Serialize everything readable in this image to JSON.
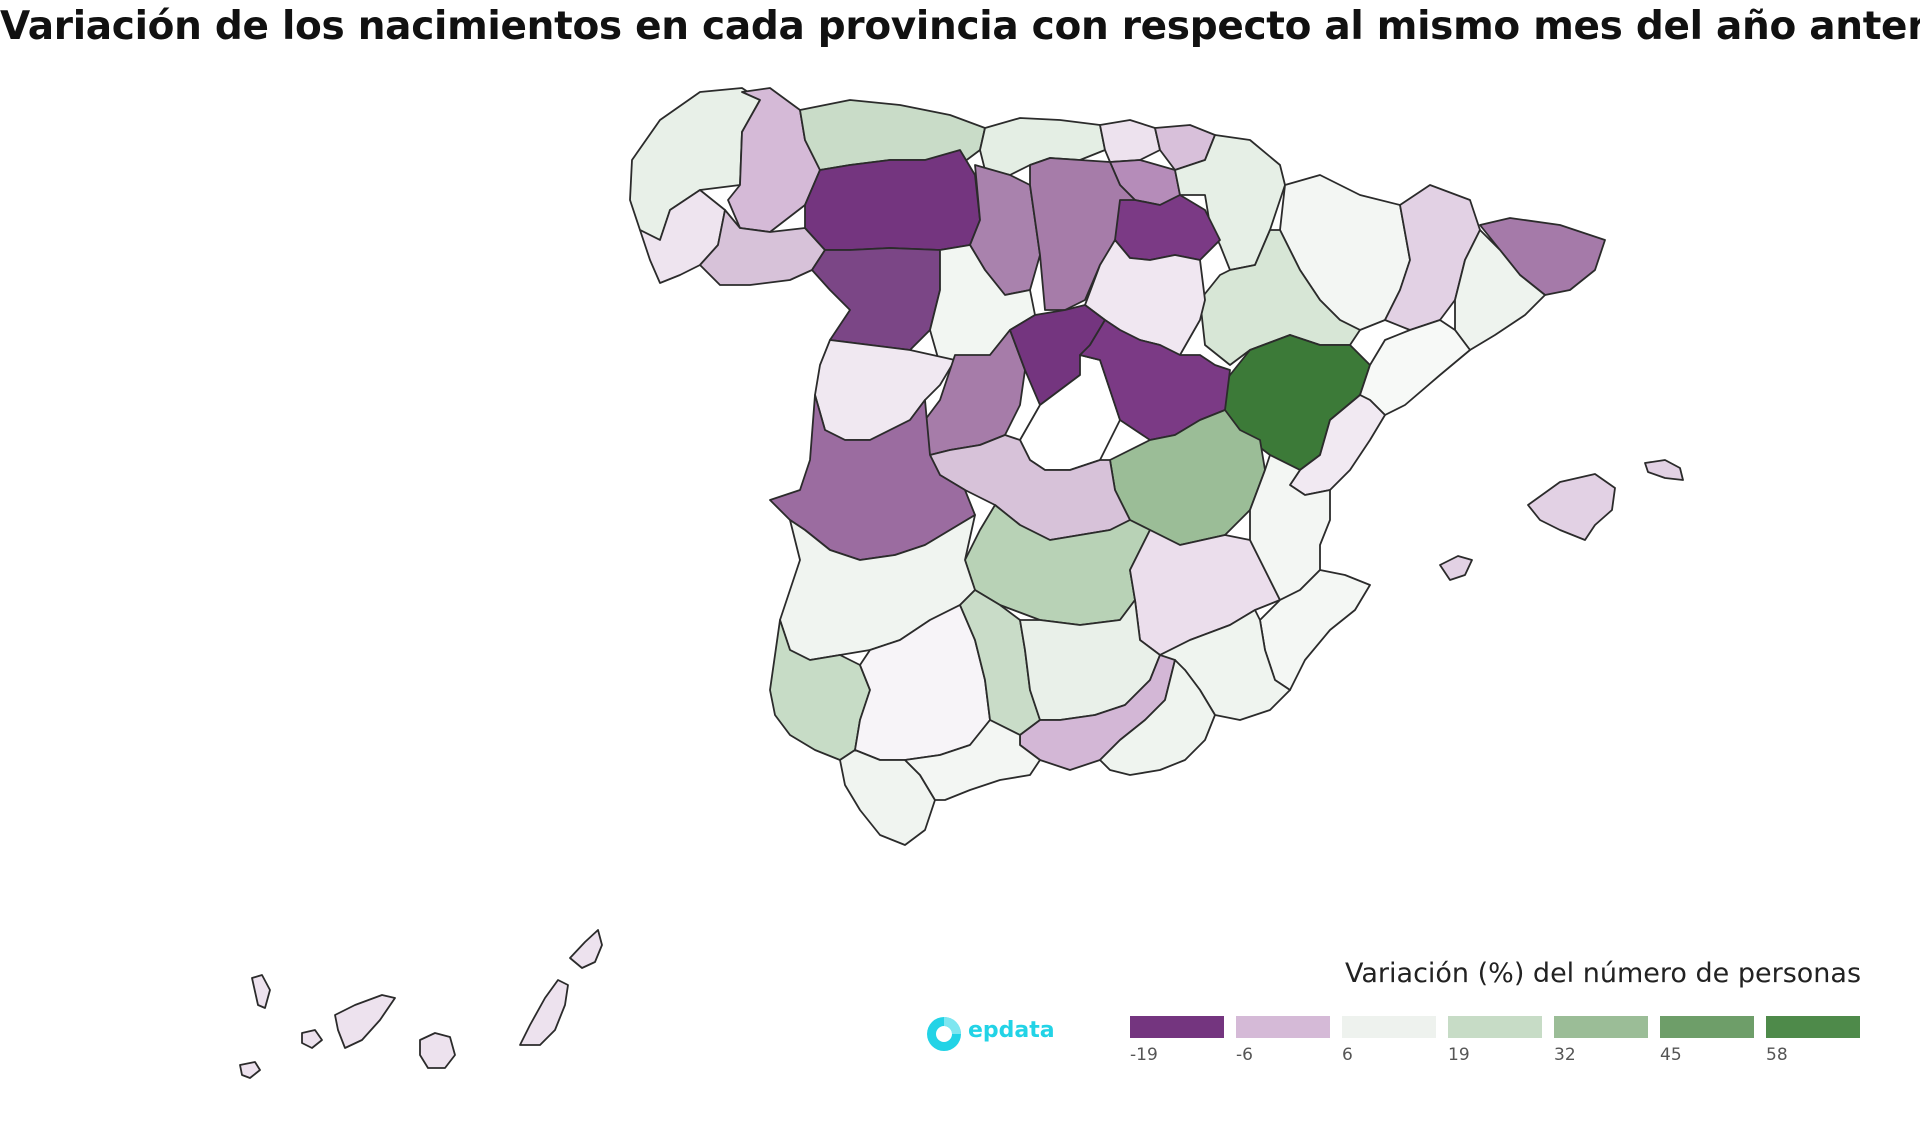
{
  "title": "Variación de los nacimientos en cada provincia con respecto al mismo mes del año anterior",
  "legend": {
    "title": "Variación (%) del número de personas",
    "ticks": [
      "-19",
      "-6",
      "6",
      "19",
      "32",
      "45",
      "58"
    ],
    "colors": [
      "#74357f",
      "#d5bad7",
      "#eef2ee",
      "#c7dcc6",
      "#9bbd97",
      "#6e9e69",
      "#4e8a4a"
    ]
  },
  "logo": {
    "text": "epdata",
    "color": "#22d3e6"
  },
  "regions": [
    {
      "name": "A Coruña",
      "color": "#e8f0e8"
    },
    {
      "name": "Lugo",
      "color": "#d5bad7"
    },
    {
      "name": "Asturias",
      "color": "#c9dcc8"
    },
    {
      "name": "Cantabria",
      "color": "#e4eee4"
    },
    {
      "name": "Bizkaia",
      "color": "#ede2ee"
    },
    {
      "name": "Gipuzkoa",
      "color": "#d8c0da"
    },
    {
      "name": "Álava",
      "color": "#b58cb9"
    },
    {
      "name": "Navarra",
      "color": "#e6efe6"
    },
    {
      "name": "Huesca",
      "color": "#f3f6f3"
    },
    {
      "name": "Lleida",
      "color": "#e2d1e4"
    },
    {
      "name": "Girona",
      "color": "#a57aa9"
    },
    {
      "name": "Barcelona",
      "color": "#eef3ee"
    },
    {
      "name": "Tarragona",
      "color": "#f7f9f7"
    },
    {
      "name": "Pontevedra",
      "color": "#eee4ef"
    },
    {
      "name": "Ourense",
      "color": "#d7c2d9"
    },
    {
      "name": "León",
      "color": "#74357f"
    },
    {
      "name": "Palencia",
      "color": "#a982ad"
    },
    {
      "name": "Burgos",
      "color": "#a67ca9"
    },
    {
      "name": "La Rioja",
      "color": "#7b3a85"
    },
    {
      "name": "Zaragoza",
      "color": "#d7e6d6"
    },
    {
      "name": "Zamora",
      "color": "#7b4686"
    },
    {
      "name": "Valladolid",
      "color": "#f2f6f2"
    },
    {
      "name": "Soria",
      "color": "#f0e7f1"
    },
    {
      "name": "Segovia",
      "color": "#74357f"
    },
    {
      "name": "Guadalajara",
      "color": "#7b3a85"
    },
    {
      "name": "Teruel",
      "color": "#3c7a38"
    },
    {
      "name": "Castellón",
      "color": "#f1e9f2"
    },
    {
      "name": "Salamanca",
      "color": "#f0e8f1"
    },
    {
      "name": "Ávila",
      "color": "#a67ca9"
    },
    {
      "name": "Madrid",
      "color": "#ffffff"
    },
    {
      "name": "Cuenca",
      "color": "#9bbd97"
    },
    {
      "name": "Valencia",
      "color": "#f3f6f3"
    },
    {
      "name": "Cáceres",
      "color": "#9b6ca0"
    },
    {
      "name": "Toledo",
      "color": "#d7c2d9"
    },
    {
      "name": "Badajoz",
      "color": "#f0f4f0"
    },
    {
      "name": "Ciudad Real",
      "color": "#b8d2b6"
    },
    {
      "name": "Albacete",
      "color": "#ebdeec"
    },
    {
      "name": "Alicante",
      "color": "#f4f7f4"
    },
    {
      "name": "Huelva",
      "color": "#c7dcc6"
    },
    {
      "name": "Sevilla",
      "color": "#f7f4f8"
    },
    {
      "name": "Córdoba",
      "color": "#c9dcc8"
    },
    {
      "name": "Jaén",
      "color": "#e9f0e9"
    },
    {
      "name": "Granada",
      "color": "#d3b7d6"
    },
    {
      "name": "Murcia",
      "color": "#eff4ef"
    },
    {
      "name": "Almería",
      "color": "#eff4ef"
    },
    {
      "name": "Cádiz",
      "color": "#f0f4f0"
    },
    {
      "name": "Málaga",
      "color": "#f3f6f3"
    },
    {
      "name": "Mallorca",
      "color": "#e2d1e4"
    },
    {
      "name": "Menorca",
      "color": "#e2d1e4"
    },
    {
      "name": "Ibiza",
      "color": "#e2d1e4"
    },
    {
      "name": "Santa Cruz de Tenerife",
      "color": "#ede2ee"
    },
    {
      "name": "Las Palmas",
      "color": "#ede2ee"
    }
  ]
}
